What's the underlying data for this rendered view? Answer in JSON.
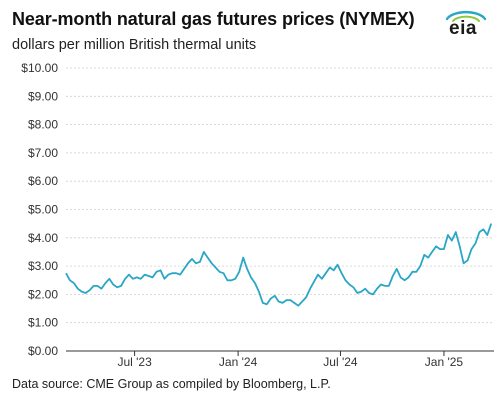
{
  "header": {
    "title": "Near-month natural gas futures prices (NYMEX)",
    "subtitle": "dollars per million British thermal units",
    "logo_text": "eia"
  },
  "footer": {
    "source": "Data source: CME Group as compiled by Bloomberg, L.P."
  },
  "colors": {
    "line": "#2aa6c6",
    "grid": "#cfcfcf",
    "axis": "#333333",
    "logo_arc": "#2aa6c6",
    "logo_arc2": "#8dc63f"
  },
  "chart_data": {
    "type": "line",
    "title": "Near-month natural gas futures prices (NYMEX)",
    "ylabel": "dollars per million British thermal units",
    "ylim": [
      0,
      10
    ],
    "xlim": [
      "2023-03-01",
      "2025-03-31"
    ],
    "grid": "horizontal",
    "y_ticks": [
      0,
      1,
      2,
      3,
      4,
      5,
      6,
      7,
      8,
      9,
      10
    ],
    "y_tick_labels": [
      "$0.00",
      "$1.00",
      "$2.00",
      "$3.00",
      "$4.00",
      "$5.00",
      "$6.00",
      "$7.00",
      "$8.00",
      "$9.00",
      "$10.00"
    ],
    "x_ticks": [
      "2023-07-01",
      "2024-01-01",
      "2024-07-01",
      "2025-01-01"
    ],
    "x_tick_labels": [
      "Jul '23",
      "Jan '24",
      "Jul '24",
      "Jan '25"
    ],
    "series": [
      {
        "name": "",
        "x": [
          "2023-03-01",
          "2023-03-08",
          "2023-03-15",
          "2023-03-22",
          "2023-03-29",
          "2023-04-05",
          "2023-04-12",
          "2023-04-19",
          "2023-04-26",
          "2023-05-03",
          "2023-05-10",
          "2023-05-17",
          "2023-05-24",
          "2023-05-31",
          "2023-06-07",
          "2023-06-14",
          "2023-06-21",
          "2023-06-28",
          "2023-07-05",
          "2023-07-12",
          "2023-07-19",
          "2023-07-26",
          "2023-08-02",
          "2023-08-09",
          "2023-08-16",
          "2023-08-23",
          "2023-08-30",
          "2023-09-06",
          "2023-09-13",
          "2023-09-20",
          "2023-09-27",
          "2023-10-04",
          "2023-10-11",
          "2023-10-18",
          "2023-10-25",
          "2023-11-01",
          "2023-11-08",
          "2023-11-15",
          "2023-11-22",
          "2023-11-29",
          "2023-12-06",
          "2023-12-13",
          "2023-12-20",
          "2023-12-27",
          "2024-01-03",
          "2024-01-10",
          "2024-01-17",
          "2024-01-24",
          "2024-01-31",
          "2024-02-07",
          "2024-02-14",
          "2024-02-21",
          "2024-02-28",
          "2024-03-06",
          "2024-03-13",
          "2024-03-20",
          "2024-03-27",
          "2024-04-03",
          "2024-04-10",
          "2024-04-17",
          "2024-04-24",
          "2024-05-01",
          "2024-05-08",
          "2024-05-15",
          "2024-05-22",
          "2024-05-29",
          "2024-06-05",
          "2024-06-12",
          "2024-06-19",
          "2024-06-26",
          "2024-07-03",
          "2024-07-10",
          "2024-07-17",
          "2024-07-24",
          "2024-07-31",
          "2024-08-07",
          "2024-08-14",
          "2024-08-21",
          "2024-08-28",
          "2024-09-04",
          "2024-09-11",
          "2024-09-18",
          "2024-09-25",
          "2024-10-02",
          "2024-10-09",
          "2024-10-16",
          "2024-10-23",
          "2024-10-30",
          "2024-11-06",
          "2024-11-13",
          "2024-11-20",
          "2024-11-27",
          "2024-12-04",
          "2024-12-11",
          "2024-12-18",
          "2024-12-25",
          "2025-01-01",
          "2025-01-08",
          "2025-01-15",
          "2025-01-22",
          "2025-01-29",
          "2025-02-05",
          "2025-02-12",
          "2025-02-19",
          "2025-02-26",
          "2025-03-05",
          "2025-03-12",
          "2025-03-19",
          "2025-03-26"
        ],
        "values": [
          2.75,
          2.5,
          2.4,
          2.2,
          2.1,
          2.05,
          2.15,
          2.3,
          2.3,
          2.2,
          2.4,
          2.55,
          2.35,
          2.25,
          2.3,
          2.55,
          2.7,
          2.55,
          2.6,
          2.55,
          2.7,
          2.65,
          2.6,
          2.8,
          2.85,
          2.55,
          2.7,
          2.75,
          2.75,
          2.7,
          2.9,
          3.1,
          3.25,
          3.1,
          3.15,
          3.5,
          3.3,
          3.1,
          2.95,
          2.8,
          2.75,
          2.5,
          2.5,
          2.55,
          2.8,
          3.3,
          2.9,
          2.6,
          2.4,
          2.1,
          1.7,
          1.65,
          1.85,
          1.95,
          1.75,
          1.7,
          1.8,
          1.8,
          1.7,
          1.6,
          1.75,
          1.9,
          2.2,
          2.45,
          2.7,
          2.55,
          2.75,
          2.95,
          2.85,
          3.05,
          2.75,
          2.5,
          2.35,
          2.25,
          2.05,
          2.1,
          2.2,
          2.05,
          2.0,
          2.2,
          2.35,
          2.3,
          2.3,
          2.65,
          2.9,
          2.6,
          2.5,
          2.6,
          2.8,
          2.8,
          3.0,
          3.4,
          3.3,
          3.5,
          3.7,
          3.6,
          3.6,
          4.1,
          3.9,
          4.2,
          3.7,
          3.1,
          3.2,
          3.6,
          3.8,
          4.2,
          4.3,
          4.1,
          4.5
        ]
      }
    ]
  }
}
